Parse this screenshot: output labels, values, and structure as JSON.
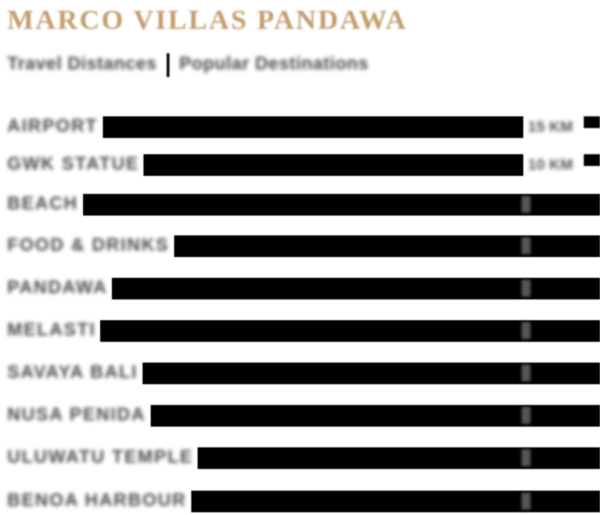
{
  "header": {
    "title": "MARCO VILLAS PANDAWA",
    "title_color": "#c49d6e"
  },
  "subheader": {
    "left": "Travel Distances",
    "divider": "|",
    "right": "Popular Destinations",
    "color": "#4a4a4a"
  },
  "colors": {
    "accent_gold": "#c49d6e",
    "label_gray": "#4a4a4a",
    "value_gray": "#555555",
    "bar_black": "#000000",
    "background": "#ffffff"
  },
  "distance_list": {
    "rows": [
      {
        "label": "AIRPORT",
        "value": "15 KM",
        "value_style": "visible"
      },
      {
        "label": "GWK STATUE",
        "value": "10 KM",
        "value_style": "visible"
      },
      {
        "label": "BEACH",
        "value": "",
        "value_style": "covered"
      },
      {
        "label": "FOOD & DRINKS",
        "value": "",
        "value_style": "covered"
      },
      {
        "label": "PANDAWA",
        "value": "",
        "value_style": "covered"
      },
      {
        "label": "MELASTI",
        "value": "",
        "value_style": "covered"
      },
      {
        "label": "SAVAYA BALI",
        "value": "",
        "value_style": "covered"
      },
      {
        "label": "NUSA PENIDA",
        "value": "",
        "value_style": "covered"
      },
      {
        "label": "ULUWATU TEMPLE",
        "value": "",
        "value_style": "covered"
      },
      {
        "label": "BENOA HARBOUR",
        "value": "",
        "value_style": "covered"
      }
    ]
  }
}
